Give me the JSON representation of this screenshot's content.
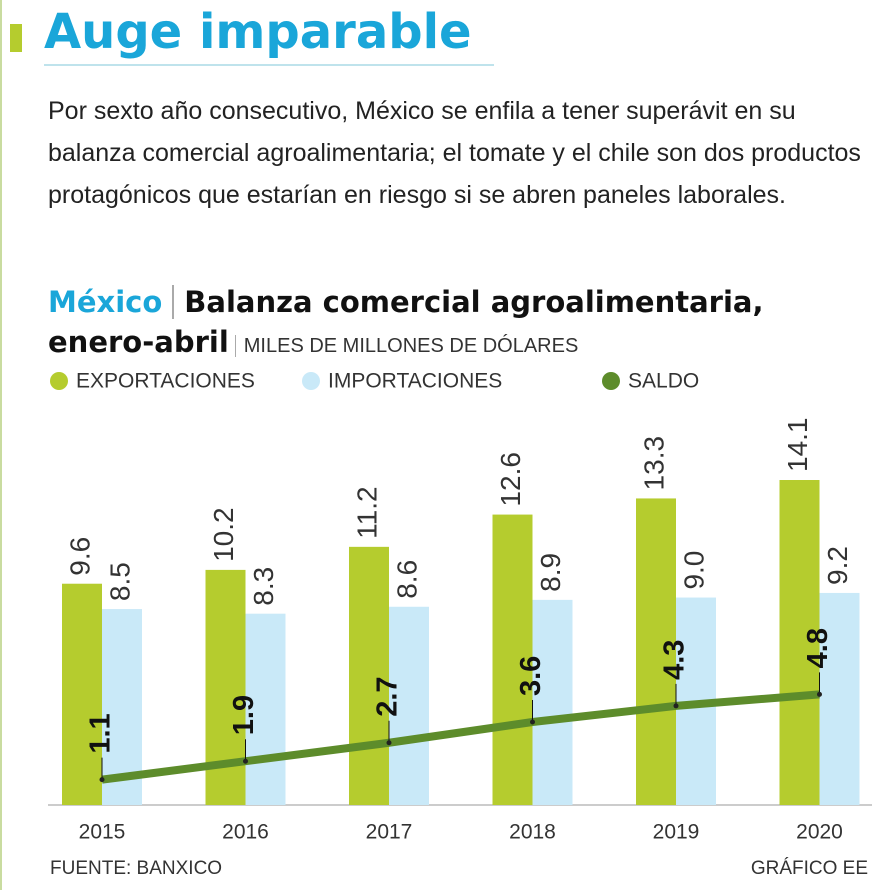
{
  "chart_data": {
    "type": "bar",
    "title": "Auge imparable",
    "description": "Por sexto año consecutivo, México se enfila a tener superávit en su balanza comercial agroalimentaria; el tomate y el chile son dos productos protagónicos que estarían en riesgo si se abren paneles laborales.",
    "chart_region": "México",
    "chart_title": "Balanza comercial agroalimentaria, enero-abril",
    "unit": "MILES DE MILLONES DE DÓLARES",
    "categories": [
      "2015",
      "2016",
      "2017",
      "2018",
      "2019",
      "2020"
    ],
    "series": [
      {
        "name": "EXPORTACIONES",
        "color": "#b5cc2e",
        "values": [
          9.6,
          10.2,
          11.2,
          12.6,
          13.3,
          14.1
        ]
      },
      {
        "name": "IMPORTACIONES",
        "color": "#c9e9f8",
        "values": [
          8.5,
          8.3,
          8.6,
          8.9,
          9.0,
          9.2
        ],
        "value_labels": [
          "8.5",
          "8.3",
          "8.6",
          "8.9",
          "9.0",
          "9.2"
        ]
      },
      {
        "name": "SALDO",
        "color": "#5d8c2b",
        "type": "line",
        "values": [
          1.1,
          1.9,
          2.7,
          3.6,
          4.3,
          4.8
        ]
      }
    ],
    "source": "FUENTE: BANXICO",
    "credit": "GRÁFICO EE"
  }
}
